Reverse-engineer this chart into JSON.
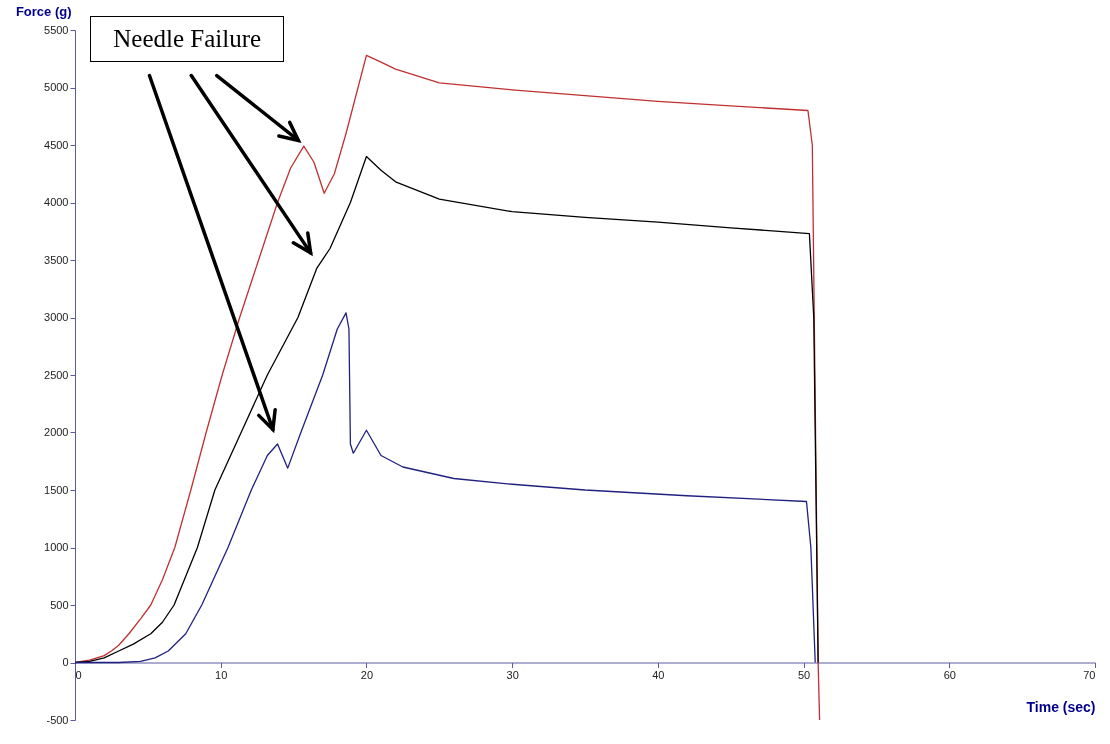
{
  "chart_data": {
    "type": "line",
    "xlabel": "Time (sec)",
    "ylabel": "Force (g)",
    "annotations": [
      "Needle Failure"
    ],
    "xlim": [
      0,
      70
    ],
    "xticks": [
      0,
      10,
      20,
      30,
      40,
      50,
      60,
      70
    ],
    "ylim": [
      -500,
      5500
    ],
    "yticks": [
      -500,
      0,
      500,
      1000,
      1500,
      2000,
      2500,
      3000,
      3500,
      4000,
      4500,
      5000,
      5500
    ],
    "grid": false,
    "legend": false,
    "marker": "none",
    "line_style": "solid",
    "series": [
      {
        "color": "#c03030",
        "x": [
          0,
          1,
          2,
          2.5,
          3,
          3.7,
          4.5,
          5.2,
          6,
          6.85,
          7.95,
          9,
          10.1,
          11.3,
          12.6,
          13.9,
          14.8,
          15.7,
          16.4,
          17.1,
          17.8,
          18.6,
          20,
          21,
          22,
          25,
          30,
          35,
          40,
          45,
          50.3,
          50.6,
          51,
          51.1
        ],
        "values": [
          0,
          20,
          60,
          100,
          150,
          250,
          380,
          500,
          720,
          1000,
          1500,
          2000,
          2500,
          3000,
          3500,
          4000,
          4300,
          4490,
          4350,
          4080,
          4250,
          4600,
          5280,
          5220,
          5160,
          5040,
          4980,
          4930,
          4880,
          4840,
          4800,
          4500,
          0,
          -500
        ]
      },
      {
        "color": "#000000",
        "x": [
          0,
          1,
          2,
          3,
          4,
          5.2,
          6,
          6.8,
          7.6,
          8.4,
          9.6,
          11.4,
          13.2,
          15.3,
          16.6,
          17.5,
          18.9,
          20,
          21,
          22,
          25,
          30,
          35,
          40,
          45,
          50.4,
          50.7,
          51
        ],
        "values": [
          0,
          10,
          40,
          100,
          160,
          250,
          350,
          500,
          750,
          1000,
          1500,
          2000,
          2500,
          3000,
          3430,
          3600,
          4000,
          4400,
          4280,
          4180,
          4030,
          3920,
          3870,
          3830,
          3780,
          3730,
          3000,
          0
        ]
      },
      {
        "color": "#202080",
        "x": [
          0,
          3,
          4.5,
          5.5,
          6.4,
          7.6,
          8.7,
          10.5,
          12.1,
          13.2,
          13.9,
          14.6,
          15.5,
          17,
          18,
          18.6,
          18.8,
          18.9,
          19.1,
          20,
          21,
          22.5,
          26,
          30,
          35,
          42,
          50.2,
          50.5,
          50.8
        ],
        "values": [
          0,
          0,
          10,
          40,
          100,
          250,
          500,
          1000,
          1500,
          1800,
          1900,
          1690,
          2000,
          2500,
          2900,
          3040,
          2900,
          1900,
          1820,
          2020,
          1800,
          1700,
          1600,
          1550,
          1500,
          1450,
          1400,
          1000,
          0
        ]
      }
    ]
  }
}
